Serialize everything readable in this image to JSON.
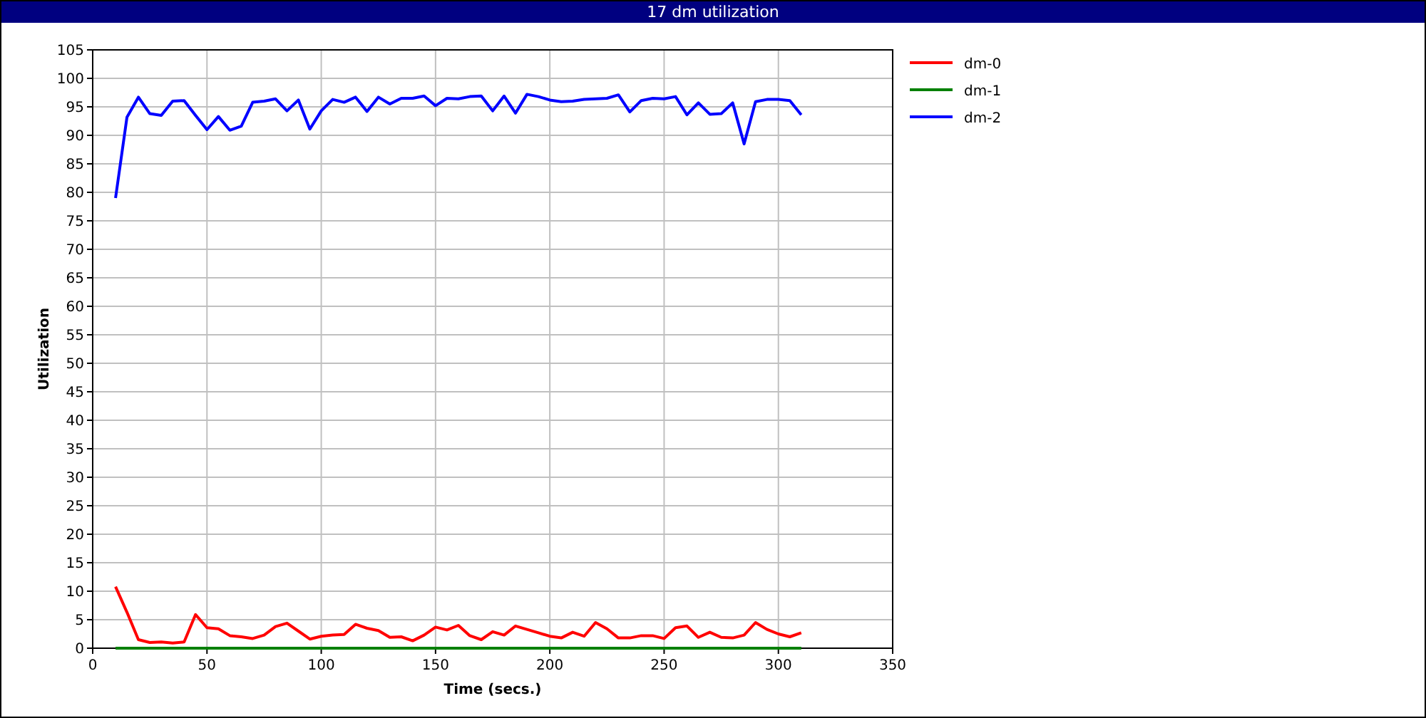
{
  "chart_data": {
    "type": "line",
    "title": "17 dm utilization",
    "xlabel": "Time (secs.)",
    "ylabel": "Utilization",
    "x": [
      10,
      15,
      20,
      25,
      30,
      35,
      40,
      45,
      50,
      55,
      60,
      65,
      70,
      75,
      80,
      85,
      90,
      95,
      100,
      105,
      110,
      115,
      120,
      125,
      130,
      135,
      140,
      145,
      150,
      155,
      160,
      165,
      170,
      175,
      180,
      185,
      190,
      195,
      200,
      205,
      210,
      215,
      220,
      225,
      230,
      235,
      240,
      245,
      250,
      255,
      260,
      265,
      270,
      275,
      280,
      285,
      290,
      295,
      300,
      305,
      310
    ],
    "series": [
      {
        "name": "dm-0",
        "color": "#ff0000",
        "values": [
          10.8,
          6.3,
          1.5,
          1.0,
          1.1,
          0.9,
          1.1,
          5.9,
          3.6,
          3.4,
          2.2,
          2.0,
          1.7,
          2.3,
          3.8,
          4.4,
          3.0,
          1.6,
          2.1,
          2.3,
          2.4,
          4.2,
          3.5,
          3.1,
          1.9,
          2.0,
          1.3,
          2.3,
          3.7,
          3.2,
          4.0,
          2.2,
          1.5,
          2.9,
          2.3,
          3.9,
          3.3,
          2.7,
          2.1,
          1.8,
          2.8,
          2.1,
          4.5,
          3.4,
          1.8,
          1.8,
          2.2,
          2.2,
          1.7,
          3.6,
          3.9,
          1.9,
          2.8,
          1.9,
          1.8,
          2.3,
          4.5,
          3.3,
          2.5,
          2.0,
          2.7
        ]
      },
      {
        "name": "dm-1",
        "color": "#008000",
        "values": [
          0,
          0,
          0,
          0,
          0,
          0,
          0,
          0,
          0,
          0,
          0,
          0,
          0,
          0,
          0,
          0,
          0,
          0,
          0,
          0,
          0,
          0,
          0,
          0,
          0,
          0,
          0,
          0,
          0,
          0,
          0,
          0,
          0,
          0,
          0,
          0,
          0,
          0,
          0,
          0,
          0,
          0,
          0,
          0,
          0,
          0,
          0,
          0,
          0,
          0,
          0,
          0,
          0,
          0,
          0,
          0,
          0,
          0,
          0,
          0,
          0
        ]
      },
      {
        "name": "dm-2",
        "color": "#0000ff",
        "values": [
          79,
          93.2,
          96.7,
          93.8,
          93.5,
          96,
          96.1,
          93.5,
          91,
          93.3,
          90.9,
          91.6,
          95.8,
          96,
          96.4,
          94.3,
          96.2,
          91.1,
          94.3,
          96.3,
          95.8,
          96.7,
          94.2,
          96.7,
          95.5,
          96.5,
          96.5,
          96.9,
          95.2,
          96.5,
          96.4,
          96.8,
          96.9,
          94.3,
          96.9,
          93.9,
          97.2,
          96.8,
          96.2,
          95.9,
          96,
          96.3,
          96.4,
          96.5,
          97.1,
          94.1,
          96.1,
          96.5,
          96.4,
          96.8,
          93.6,
          95.7,
          93.7,
          93.8,
          95.7,
          88.5,
          95.9,
          96.3,
          96.3,
          96.1,
          93.6
        ]
      }
    ],
    "xlim": [
      0,
      350
    ],
    "xticks": [
      0,
      50,
      100,
      150,
      200,
      250,
      300,
      350
    ],
    "ylim": [
      0,
      105
    ],
    "yticks": [
      0,
      5,
      10,
      15,
      20,
      25,
      30,
      35,
      40,
      45,
      50,
      55,
      60,
      65,
      70,
      75,
      80,
      85,
      90,
      95,
      100,
      105
    ],
    "grid": true,
    "legend": "top right",
    "marker": "none",
    "line_style": "solid"
  }
}
